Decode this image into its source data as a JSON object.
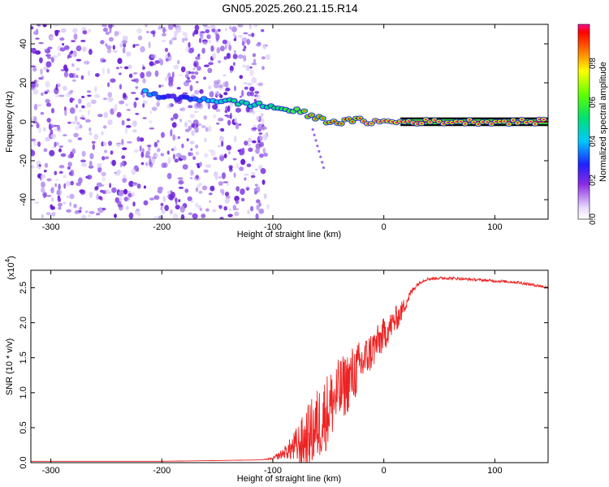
{
  "figure": {
    "title": "GN05.2025.260.21.15.R14"
  },
  "colors": {
    "spectrum_high": "#ff1a1a",
    "spectrum_mid": "#22dd22",
    "spectrum_low": "#3040ff",
    "noise": "#7a2ee6",
    "snr_line": "#ee2222"
  },
  "chart_data": [
    {
      "type": "heatmap",
      "title": "GN05.2025.260.21.15.R14",
      "xlabel": "Height of straight line (km)",
      "ylabel": "Frequency (Hz)",
      "xlim": [
        -318,
        148
      ],
      "ylim": [
        -50,
        50
      ],
      "x_ticks": [
        -300,
        -200,
        -100,
        0,
        100
      ],
      "y_ticks": [
        -40,
        -20,
        0,
        20,
        40
      ],
      "x_tick_labels": [
        "-300",
        "-200",
        "-100",
        "0",
        "100"
      ],
      "y_tick_labels": [
        "-40",
        "-20",
        "0",
        "20",
        "40"
      ],
      "noise_region": [
        -318,
        -110
      ],
      "signal_trace": {
        "x": [
          -215,
          -190,
          -170,
          -150,
          -135,
          -120,
          -105,
          -95,
          -85,
          -75,
          -65,
          -55,
          -45,
          -35,
          -25,
          -15,
          0,
          15,
          30,
          148
        ],
        "frequency": [
          15,
          12,
          12,
          11,
          10,
          9,
          8,
          7,
          6,
          5,
          3,
          1,
          0,
          0,
          1,
          0,
          0,
          0,
          0,
          0
        ],
        "amplitude": [
          0.55,
          0.3,
          0.45,
          0.6,
          0.7,
          0.65,
          0.7,
          0.75,
          0.8,
          0.85,
          0.9,
          0.9,
          0.95,
          0.95,
          0.95,
          1.0,
          1.0,
          1.0,
          1.0,
          1.0
        ]
      },
      "colorbar": {
        "label": "Normalized spectral amplitude",
        "range": [
          0,
          1
        ],
        "ticks": [
          0.0,
          0.2,
          0.4,
          0.6,
          0.8
        ],
        "tick_labels": [
          "0.0",
          "0.2",
          "0.4",
          "0.6",
          "0.8"
        ]
      }
    },
    {
      "type": "line",
      "xlabel": "Height of straight line (km)",
      "ylabel": "SNR (10 * v/v)",
      "y_multiplier": "(x10",
      "y_multiplier_exp": "4",
      "y_multiplier_close": ")",
      "xlim": [
        -318,
        148
      ],
      "ylim": [
        0,
        2.75
      ],
      "x_ticks": [
        -300,
        -200,
        -100,
        0,
        100
      ],
      "y_ticks": [
        0,
        0.5,
        1.0,
        1.5,
        2.0,
        2.5
      ],
      "x_tick_labels": [
        "-300",
        "-200",
        "-100",
        "0",
        "100"
      ],
      "y_tick_labels": [
        "0.0",
        "0.5",
        "1.0",
        "1.5",
        "2.0",
        "2.5"
      ],
      "series": [
        {
          "x": [
            -318,
            -250,
            -200,
            -150,
            -110,
            -100,
            -95,
            -90,
            -85,
            -80,
            -75,
            -70,
            -65,
            -60,
            -55,
            -50,
            -45,
            -40,
            -35,
            -30,
            -25,
            -20,
            -15,
            -10,
            -5,
            0,
            5,
            10,
            15,
            20,
            25,
            30,
            35,
            40,
            50,
            60,
            80,
            100,
            120,
            140,
            148
          ],
          "y": [
            0.02,
            0.02,
            0.02,
            0.03,
            0.04,
            0.06,
            0.1,
            0.15,
            0.2,
            0.25,
            0.3,
            0.38,
            0.48,
            0.58,
            0.7,
            0.82,
            0.95,
            1.05,
            1.15,
            1.25,
            1.35,
            1.45,
            1.55,
            1.65,
            1.75,
            1.85,
            1.95,
            2.05,
            2.15,
            2.3,
            2.45,
            2.55,
            2.6,
            2.63,
            2.64,
            2.64,
            2.62,
            2.6,
            2.58,
            2.53,
            2.5
          ],
          "noise": [
            0,
            0,
            0,
            0,
            0,
            0.02,
            0.05,
            0.08,
            0.15,
            0.25,
            0.35,
            0.45,
            0.5,
            0.55,
            0.55,
            0.55,
            0.5,
            0.5,
            0.45,
            0.45,
            0.4,
            0.35,
            0.3,
            0.3,
            0.25,
            0.25,
            0.2,
            0.2,
            0.15,
            0.1,
            0.05,
            0.03,
            0.02,
            0.02,
            0.02,
            0.02,
            0.02,
            0.02,
            0.02,
            0.02,
            0.02
          ]
        }
      ]
    }
  ]
}
